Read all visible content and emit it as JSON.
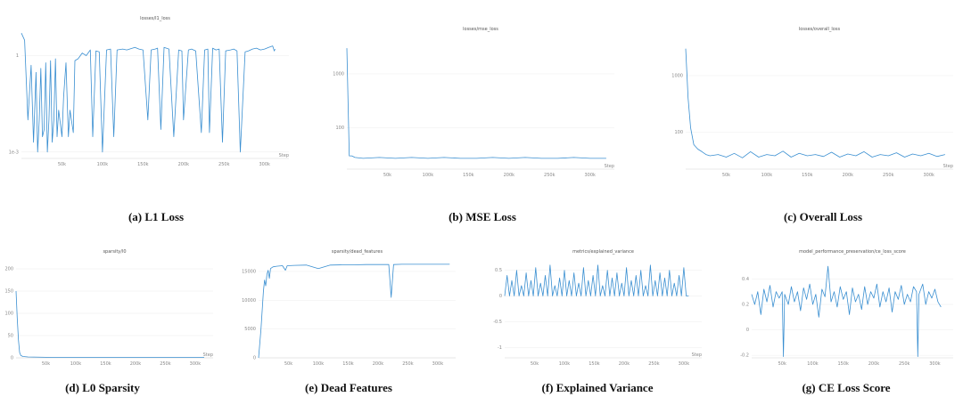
{
  "chart_data": [
    {
      "id": "l1",
      "type": "line",
      "title": "losses/l1_loss",
      "caption": "(a) L1 Loss",
      "xlabel": "Step",
      "x_ticks": [
        "50k",
        "100k",
        "150k",
        "200k",
        "250k",
        "300k"
      ],
      "y_ticks": [
        "1",
        "1e-3"
      ],
      "log_y": true,
      "xlim": [
        0,
        330000
      ],
      "series": [
        {
          "x": [
            0,
            4000,
            8000,
            12000,
            15000,
            18000,
            20000,
            22000,
            24000,
            26000,
            28000,
            30000,
            32000,
            34000,
            36000,
            38000,
            40000,
            42000,
            44000,
            46000,
            50000,
            52000,
            55000,
            58000,
            60000,
            64000,
            66000,
            70000,
            75000,
            80000,
            85000,
            88000,
            92000,
            96000,
            100000,
            105000,
            110000,
            114000,
            118000,
            125000,
            130000,
            140000,
            145000,
            150000,
            156000,
            160000,
            165000,
            168000,
            172000,
            176000,
            182000,
            188000,
            194000,
            198000,
            200000,
            206000,
            210000,
            215000,
            222000,
            226000,
            230000,
            232000,
            236000,
            240000,
            244000,
            248000,
            252000,
            258000,
            262000,
            266000,
            270000,
            276000,
            280000,
            285000,
            290000,
            295000,
            300000,
            305000,
            310000,
            312000,
            313000
          ],
          "values": [
            5,
            3,
            0.01,
            0.5,
            0.002,
            0.3,
            0.001,
            0.01,
            0.4,
            0.003,
            0.005,
            0.6,
            0.001,
            0.01,
            0.7,
            0.002,
            0.01,
            0.8,
            0.003,
            0.02,
            0.003,
            0.05,
            0.6,
            0.003,
            0.02,
            0.004,
            0.7,
            0.8,
            1.2,
            1.0,
            1.5,
            0.003,
            1.4,
            1.3,
            0.001,
            1.5,
            1.6,
            0.003,
            1.5,
            1.6,
            1.5,
            1.8,
            1.6,
            1.5,
            0.01,
            1.5,
            1.6,
            1.7,
            0.005,
            1.8,
            1.6,
            0.003,
            1.5,
            1.4,
            0.01,
            1.5,
            1.6,
            1.4,
            0.004,
            1.5,
            1.6,
            0.004,
            1.7,
            1.5,
            1.6,
            0.002,
            1.4,
            1.5,
            1.6,
            1.4,
            0.001,
            1.3,
            1.4,
            1.6,
            1.7,
            1.5,
            1.6,
            1.8,
            2.0,
            1.4,
            1.6
          ]
        }
      ]
    },
    {
      "id": "mse",
      "type": "line",
      "title": "losses/mse_loss",
      "caption": "(b) MSE Loss",
      "xlabel": "Step",
      "x_ticks": [
        "50k",
        "100k",
        "150k",
        "200k",
        "250k",
        "300k"
      ],
      "y_ticks": [
        "1000",
        "100"
      ],
      "log_y": true,
      "xlim": [
        0,
        330000
      ],
      "series": [
        {
          "x": [
            0,
            3000,
            6000,
            10000,
            20000,
            40000,
            60000,
            80000,
            100000,
            120000,
            140000,
            160000,
            180000,
            200000,
            220000,
            240000,
            260000,
            280000,
            300000,
            320000
          ],
          "values": [
            3000,
            30,
            30,
            28,
            27,
            28,
            27,
            28,
            27,
            28,
            27,
            27,
            28,
            27,
            28,
            27,
            27,
            28,
            27,
            27
          ]
        }
      ]
    },
    {
      "id": "overall",
      "type": "line",
      "title": "losses/overall_loss",
      "caption": "(c) Overall Loss",
      "xlabel": "Step",
      "x_ticks": [
        "50k",
        "100k",
        "150k",
        "200k",
        "250k",
        "300k"
      ],
      "y_ticks": [
        "1000",
        "100"
      ],
      "log_y": true,
      "xlim": [
        0,
        330000
      ],
      "series": [
        {
          "x": [
            0,
            3000,
            6000,
            10000,
            15000,
            20000,
            25000,
            30000,
            40000,
            50000,
            60000,
            70000,
            80000,
            90000,
            100000,
            110000,
            120000,
            130000,
            140000,
            150000,
            160000,
            170000,
            180000,
            190000,
            200000,
            210000,
            220000,
            230000,
            240000,
            250000,
            260000,
            270000,
            280000,
            290000,
            300000,
            310000,
            320000
          ],
          "values": [
            3000,
            400,
            120,
            60,
            50,
            45,
            40,
            38,
            40,
            36,
            42,
            35,
            45,
            36,
            40,
            38,
            46,
            36,
            42,
            38,
            40,
            37,
            44,
            36,
            41,
            38,
            45,
            36,
            40,
            38,
            43,
            36,
            41,
            38,
            42,
            37,
            40
          ]
        }
      ]
    },
    {
      "id": "l0",
      "type": "line",
      "title": "sparsity/l0",
      "caption": "(d) L0 Sparsity",
      "xlabel": "Step",
      "x_ticks": [
        "50k",
        "100k",
        "150k",
        "200k",
        "250k",
        "300k"
      ],
      "y_ticks": [
        "200",
        "150",
        "100",
        "50",
        "0"
      ],
      "ylim": [
        0,
        220
      ],
      "xlim": [
        0,
        330000
      ],
      "series": [
        {
          "x": [
            0,
            2000,
            4000,
            6000,
            8000,
            12000,
            20000,
            60000,
            120000,
            180000,
            240000,
            300000,
            315000
          ],
          "values": [
            150,
            90,
            40,
            12,
            5,
            3,
            2,
            1,
            1,
            1,
            1,
            1,
            1
          ]
        }
      ]
    },
    {
      "id": "dead",
      "type": "line",
      "title": "sparsity/dead_features",
      "caption": "(e) Dead Features",
      "xlabel": "",
      "x_ticks": [
        "50k",
        "100k",
        "150k",
        "200k",
        "250k",
        "300k"
      ],
      "y_ticks": [
        "15000",
        "10000",
        "5000",
        "0"
      ],
      "ylim": [
        0,
        17000
      ],
      "xlim": [
        0,
        330000
      ],
      "series": [
        {
          "x": [
            0,
            4000,
            8000,
            10000,
            12000,
            14000,
            16000,
            18000,
            20000,
            24000,
            30000,
            40000,
            45000,
            48000,
            60000,
            80000,
            100000,
            120000,
            140000,
            160000,
            180000,
            200000,
            218000,
            222000,
            226000,
            240000,
            260000,
            280000,
            300000,
            320000
          ],
          "values": [
            0,
            5000,
            11500,
            13500,
            12500,
            14500,
            15200,
            13800,
            15500,
            15800,
            15900,
            16000,
            15200,
            16000,
            16050,
            16100,
            15500,
            16100,
            16150,
            16150,
            16200,
            16200,
            16200,
            10500,
            16200,
            16250,
            16250,
            16250,
            16250,
            16250
          ]
        }
      ]
    },
    {
      "id": "ev",
      "type": "line",
      "title": "metrics/explained_variance",
      "caption": "(f) Explained Variance",
      "xlabel": "Step",
      "x_ticks": [
        "50k",
        "100k",
        "150k",
        "200k",
        "250k",
        "300k"
      ],
      "y_ticks": [
        "0.5",
        "0",
        "-0.5",
        "-1"
      ],
      "ylim": [
        -1.2,
        0.7
      ],
      "xlim": [
        0,
        330000
      ],
      "series": [
        {
          "x": [
            0,
            4000,
            8000,
            12000,
            16000,
            20000,
            24000,
            28000,
            32000,
            36000,
            40000,
            44000,
            48000,
            52000,
            56000,
            60000,
            64000,
            68000,
            72000,
            76000,
            80000,
            84000,
            88000,
            92000,
            96000,
            100000,
            104000,
            108000,
            112000,
            116000,
            120000,
            124000,
            128000,
            132000,
            136000,
            140000,
            144000,
            148000,
            152000,
            156000,
            160000,
            164000,
            168000,
            172000,
            176000,
            180000,
            184000,
            188000,
            192000,
            196000,
            200000,
            204000,
            208000,
            212000,
            216000,
            220000,
            224000,
            228000,
            232000,
            236000,
            240000,
            244000,
            248000,
            252000,
            256000,
            260000,
            264000,
            268000,
            272000,
            276000,
            280000,
            284000,
            288000,
            292000,
            296000,
            300000,
            304000,
            308000
          ],
          "values": [
            0,
            0.4,
            0,
            0.3,
            0,
            0.5,
            0,
            0.2,
            0,
            0.45,
            0,
            0.3,
            0,
            0.55,
            0,
            0.25,
            0,
            0.4,
            0,
            0.6,
            0,
            0.2,
            0,
            0.35,
            0,
            0.5,
            0,
            0.3,
            0,
            0.45,
            0,
            0.25,
            0,
            0.55,
            0,
            0.3,
            0,
            0.4,
            0,
            0.6,
            0,
            0.2,
            0,
            0.5,
            0,
            0.35,
            0,
            0.45,
            0,
            0.25,
            0,
            0.55,
            0,
            0.3,
            0,
            0.4,
            0,
            0.5,
            0,
            0.2,
            0,
            0.6,
            0,
            0.3,
            0,
            0.45,
            0,
            0.35,
            0,
            0.5,
            0,
            0.25,
            0,
            0.4,
            0,
            0.55,
            0,
            0
          ]
        }
      ]
    },
    {
      "id": "ce",
      "type": "line",
      "title": "model_performance_preservation/ce_loss_score",
      "caption": "(g) CE Loss Score",
      "xlabel": "",
      "x_ticks": [
        "50k",
        "100k",
        "150k",
        "200k",
        "250k",
        "300k"
      ],
      "y_ticks": [
        "0.4",
        "0.2",
        "0",
        "-0.2"
      ],
      "ylim": [
        -0.22,
        0.55
      ],
      "xlim": [
        0,
        330000
      ],
      "series": [
        {
          "x": [
            0,
            5000,
            10000,
            15000,
            20000,
            25000,
            30000,
            35000,
            40000,
            45000,
            50000,
            52000,
            54000,
            60000,
            65000,
            70000,
            75000,
            80000,
            85000,
            90000,
            95000,
            100000,
            105000,
            110000,
            115000,
            120000,
            125000,
            130000,
            135000,
            140000,
            145000,
            150000,
            155000,
            160000,
            165000,
            170000,
            175000,
            180000,
            185000,
            190000,
            195000,
            200000,
            205000,
            210000,
            215000,
            220000,
            225000,
            230000,
            235000,
            240000,
            245000,
            250000,
            255000,
            260000,
            265000,
            270000,
            272000,
            274000,
            280000,
            285000,
            290000,
            295000,
            300000,
            305000,
            310000
          ],
          "values": [
            0.28,
            0.2,
            0.3,
            0.12,
            0.32,
            0.22,
            0.35,
            0.18,
            0.3,
            0.25,
            0.3,
            -0.21,
            0.28,
            0.2,
            0.34,
            0.22,
            0.3,
            0.15,
            0.33,
            0.24,
            0.36,
            0.2,
            0.28,
            0.1,
            0.32,
            0.26,
            0.5,
            0.22,
            0.3,
            0.18,
            0.34,
            0.24,
            0.3,
            0.12,
            0.33,
            0.22,
            0.28,
            0.16,
            0.34,
            0.2,
            0.3,
            0.25,
            0.36,
            0.18,
            0.3,
            0.22,
            0.33,
            0.14,
            0.3,
            0.24,
            0.35,
            0.2,
            0.28,
            0.22,
            0.34,
            0.3,
            -0.21,
            0.28,
            0.36,
            0.2,
            0.3,
            0.25,
            0.32,
            0.22,
            0.18
          ]
        }
      ]
    }
  ]
}
